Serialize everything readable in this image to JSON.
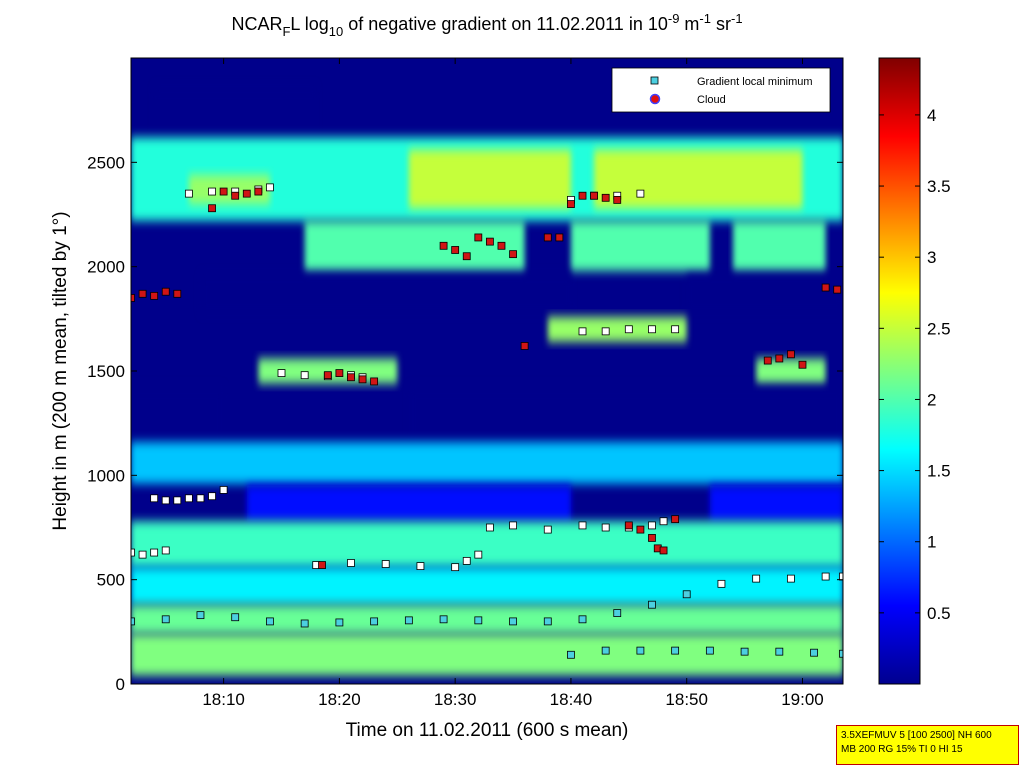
{
  "chart_data": {
    "type": "heatmap",
    "title_parts": {
      "prefix": "NCAR",
      "sub1": "F",
      "mid1": "L log",
      "sub2": "10",
      "mid2": " of negative gradient on 11.02.2011 in 10",
      "sup1": "-9",
      "mid3": " m",
      "sup2": "-1",
      "mid4": " sr",
      "sup3": "-1"
    },
    "xlabel": "Time on 11.02.2011 (600 s mean)",
    "ylabel": "Height in m (200 m mean, tilted by 1°)",
    "x_ticks": [
      "18:10",
      "18:20",
      "18:30",
      "18:40",
      "18:50",
      "19:00"
    ],
    "x_tick_minutes": [
      10,
      20,
      30,
      40,
      50,
      60
    ],
    "xlim_minutes": [
      2,
      63.5
    ],
    "y_ticks": [
      0,
      500,
      1000,
      1500,
      2000,
      2500
    ],
    "ylim": [
      0,
      3000
    ],
    "colorbar": {
      "ticks": [
        0.5,
        1,
        1.5,
        2,
        2.5,
        3,
        3.5,
        4
      ],
      "tick_labels": [
        "0.5",
        "1",
        "1.5",
        "2",
        "2.5",
        "3",
        "3.5",
        "4"
      ],
      "range": [
        0,
        4.4
      ],
      "colormap": "jet"
    },
    "legend": {
      "placement": "top-right",
      "entries": [
        {
          "label": "Gradient local minimum",
          "marker": "square",
          "color": "#4ccfe0"
        },
        {
          "label": "Cloud",
          "marker": "circle",
          "color": "#e01010"
        }
      ]
    },
    "bands": [
      {
        "name": "sky-low",
        "y0": 2600,
        "y1": 2860,
        "v": 0.05,
        "segments": [
          [
            4,
            18
          ]
        ]
      },
      {
        "name": "layer-top",
        "y0": 2220,
        "y1": 2620,
        "v": 1.8,
        "segments": [
          [
            2,
            63.5
          ]
        ]
      },
      {
        "name": "layer-top-core",
        "y0": 2280,
        "y1": 2560,
        "v": 2.5,
        "segments": [
          [
            26,
            40
          ],
          [
            42,
            60
          ]
        ]
      },
      {
        "name": "layer-top-west",
        "y0": 2300,
        "y1": 2440,
        "v": 2.3,
        "segments": [
          [
            7,
            14
          ]
        ]
      },
      {
        "name": "layer-2100",
        "y0": 1980,
        "y1": 2220,
        "v": 2.0,
        "segments": [
          [
            17,
            36
          ],
          [
            40,
            52
          ],
          [
            54,
            62
          ]
        ]
      },
      {
        "name": "gap-1900",
        "y0": 1780,
        "y1": 1960,
        "v": 0.05,
        "segments": [
          [
            8,
            40
          ],
          [
            50,
            63.5
          ]
        ]
      },
      {
        "name": "layer-1700",
        "y0": 1640,
        "y1": 1760,
        "v": 2.3,
        "segments": [
          [
            38,
            50
          ]
        ]
      },
      {
        "name": "layer-1500",
        "y0": 1440,
        "y1": 1560,
        "v": 2.2,
        "segments": [
          [
            13,
            25
          ],
          [
            56,
            62
          ]
        ]
      },
      {
        "name": "gap-1300",
        "y0": 1160,
        "y1": 1420,
        "v": 0.05,
        "segments": [
          [
            2,
            10
          ],
          [
            26,
            63.5
          ]
        ]
      },
      {
        "name": "layer-1000",
        "y0": 960,
        "y1": 1160,
        "v": 1.4,
        "segments": [
          [
            2,
            63.5
          ]
        ]
      },
      {
        "name": "gap-800",
        "y0": 780,
        "y1": 950,
        "v": 0.6,
        "segments": [
          [
            12,
            40
          ],
          [
            52,
            63.5
          ]
        ]
      },
      {
        "name": "layer-650",
        "y0": 560,
        "y1": 780,
        "v": 1.9,
        "segments": [
          [
            2,
            63.5
          ]
        ]
      },
      {
        "name": "layer-450",
        "y0": 380,
        "y1": 560,
        "v": 1.6,
        "segments": [
          [
            2,
            63.5
          ]
        ]
      },
      {
        "name": "layer-300",
        "y0": 240,
        "y1": 380,
        "v": 2.1,
        "segments": [
          [
            2,
            63.5
          ]
        ]
      },
      {
        "name": "layer-100",
        "y0": 40,
        "y1": 240,
        "v": 2.2,
        "segments": [
          [
            2,
            63.5
          ]
        ]
      }
    ],
    "series": [
      {
        "name": "Gradient local minimum",
        "x_minutes": [
          2,
          5,
          8,
          11,
          14,
          17,
          20,
          23,
          26,
          29,
          32,
          35,
          38,
          41,
          44,
          47,
          50,
          53,
          56,
          59,
          62,
          63.5
        ],
        "y": [
          300,
          310,
          330,
          320,
          300,
          290,
          295,
          300,
          305,
          310,
          305,
          300,
          300,
          310,
          340,
          380,
          430,
          480,
          505,
          505,
          515,
          515
        ]
      },
      {
        "name": "Gradient local minimum",
        "x_minutes": [
          40,
          43,
          46,
          49,
          52,
          55,
          58,
          61,
          63.5
        ],
        "y": [
          140,
          160,
          160,
          160,
          160,
          155,
          155,
          150,
          145
        ]
      },
      {
        "name": "Gradient local minimum",
        "x_minutes": [
          2,
          3,
          4,
          5
        ],
        "y": [
          630,
          620,
          630,
          640
        ]
      },
      {
        "name": "Gradient local minimum",
        "x_minutes": [
          18,
          21,
          24,
          27,
          30,
          31,
          32,
          33,
          35,
          38,
          41,
          43,
          45,
          47,
          48
        ],
        "y": [
          570,
          580,
          575,
          565,
          560,
          590,
          620,
          750,
          760,
          740,
          760,
          750,
          750,
          760,
          780
        ]
      },
      {
        "name": "Gradient local minimum",
        "x_minutes": [
          4,
          5,
          6,
          7,
          8,
          9,
          10
        ],
        "y": [
          890,
          880,
          880,
          890,
          890,
          900,
          930
        ]
      },
      {
        "name": "Gradient local minimum",
        "x_minutes": [
          15,
          17,
          19,
          21,
          22
        ],
        "y": [
          1490,
          1480,
          1475,
          1480,
          1470
        ]
      },
      {
        "name": "Gradient local minimum",
        "x_minutes": [
          7,
          9,
          11,
          13,
          14
        ],
        "y": [
          2350,
          2360,
          2360,
          2370,
          2380
        ]
      },
      {
        "name": "Gradient local minimum",
        "x_minutes": [
          40,
          42,
          44,
          46
        ],
        "y": [
          2320,
          2340,
          2340,
          2350
        ]
      },
      {
        "name": "Gradient local minimum",
        "x_minutes": [
          41,
          43,
          45,
          47,
          49
        ],
        "y": [
          1690,
          1690,
          1700,
          1700,
          1700
        ]
      },
      {
        "name": "Cloud",
        "x_minutes": [
          2,
          3,
          4,
          5,
          6,
          9,
          10,
          11,
          12,
          13,
          18.5,
          19,
          20,
          21,
          22,
          23,
          29,
          30,
          31,
          32,
          33,
          34,
          35,
          36,
          38,
          39,
          40,
          41,
          42,
          43,
          44,
          45,
          46,
          47,
          47.5,
          48,
          49,
          57,
          58,
          59,
          60,
          62,
          63
        ],
        "y": [
          1850,
          1870,
          1860,
          1880,
          1870,
          2280,
          2360,
          2340,
          2350,
          2360,
          570,
          1480,
          1490,
          1470,
          1460,
          1450,
          2100,
          2080,
          2050,
          2140,
          2120,
          2100,
          2060,
          1620,
          2140,
          2140,
          2300,
          2340,
          2340,
          2330,
          2320,
          760,
          740,
          700,
          650,
          640,
          790,
          1550,
          1560,
          1580,
          1530,
          1900,
          1890
        ]
      }
    ]
  },
  "info_box": {
    "line1": "3.5XEFMUV 5 [100 2500] NH 600",
    "line2": "MB 200 RG 15% TI 0 HI 15"
  }
}
